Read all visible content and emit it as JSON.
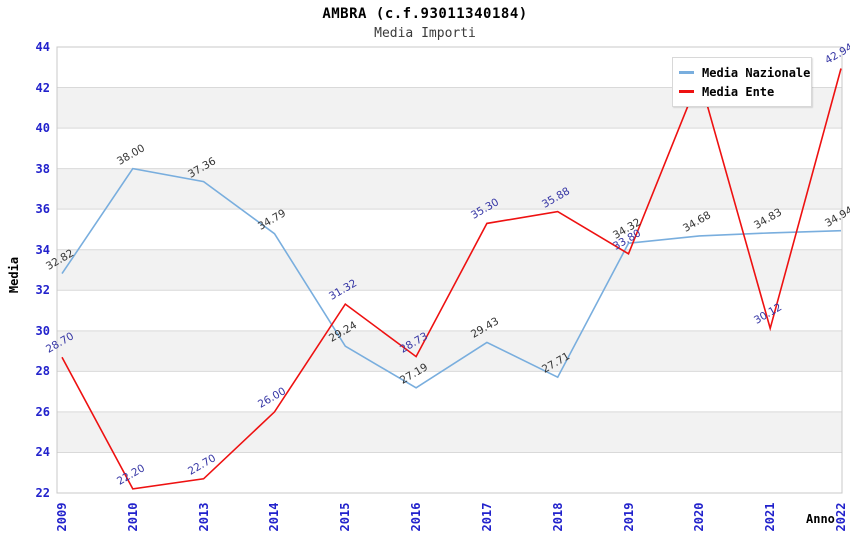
{
  "header": {
    "title": "AMBRA (c.f.93011340184)",
    "subtitle": "Media Importi"
  },
  "axes": {
    "y_title": "Media",
    "x_title": "Anno",
    "y_ticks": [
      44,
      42,
      40,
      38,
      36,
      34,
      32,
      30,
      28,
      26,
      24,
      22
    ],
    "tick_color": "#2222cc"
  },
  "legend": {
    "position": "top-right",
    "items": [
      {
        "label": "Media Nazionale",
        "color": "#79aede"
      },
      {
        "label": "Media Ente",
        "color": "#ee1111"
      }
    ]
  },
  "colors": {
    "band_gray": "#f2f2f2",
    "grid_line": "#d9d9d9",
    "plot_border": "#c8c8c8",
    "label_national": "#333333",
    "label_ente": "#3434a4"
  },
  "chart_data": {
    "type": "line",
    "title": "AMBRA (c.f.93011340184)",
    "subtitle": "Media Importi",
    "xlabel": "Anno",
    "ylabel": "Media",
    "ylim": [
      22,
      44
    ],
    "y_tick_step": 2,
    "grid": true,
    "background_bands": "alternating white/gray every 2 units, gray on 24-26, 28-30, 32-34, 36-38, 40-42",
    "legend_position": "top-right (covers Media Ente 2020 peak, its label is hidden)",
    "categories": [
      "2009",
      "2010",
      "2013",
      "2014",
      "2015",
      "2016",
      "2017",
      "2018",
      "2019",
      "2020",
      "2021",
      "2022"
    ],
    "series": [
      {
        "name": "Media Nazionale",
        "color": "#79aede",
        "label_color": "#333333",
        "values": [
          32.82,
          38.0,
          37.36,
          34.79,
          29.24,
          27.19,
          29.43,
          27.71,
          34.32,
          34.68,
          34.83,
          34.94
        ],
        "labels": [
          "32.82",
          "38.00",
          "37.36",
          "34.79",
          "29.24",
          "27.19",
          "29.43",
          "27.71",
          "34.32",
          "34.68",
          "34.83",
          "34.94"
        ]
      },
      {
        "name": "Media Ente",
        "color": "#ee1111",
        "label_color": "#3434a4",
        "values": [
          28.7,
          22.2,
          22.7,
          26.0,
          31.32,
          28.73,
          35.3,
          35.88,
          33.8,
          42.5,
          30.12,
          42.94
        ],
        "labels": [
          "28.70",
          "22.20",
          "22.70",
          "26.00",
          "31.32",
          "28.73",
          "35.30",
          "35.88",
          "33.80",
          null,
          "30.12",
          "42.94"
        ]
      }
    ]
  }
}
